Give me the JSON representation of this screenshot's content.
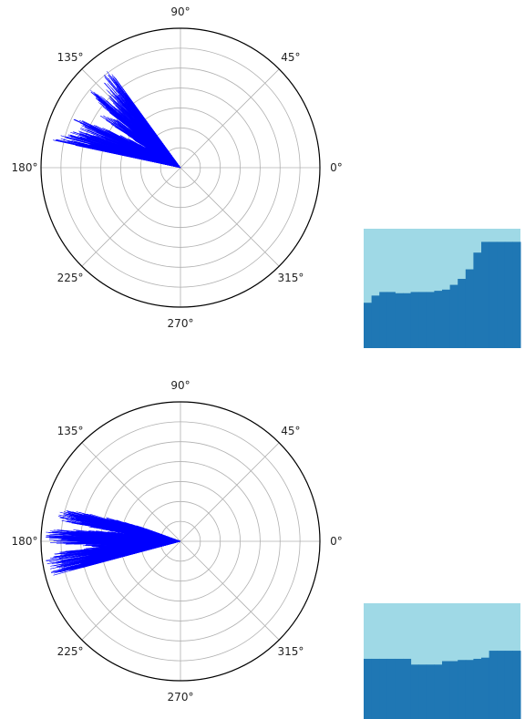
{
  "chart_data": [
    {
      "type": "polar",
      "angle_unit": "degrees",
      "angle_tick_labels": [
        "0°",
        "45°",
        "90°",
        "135°",
        "180°",
        "225°",
        "270°",
        "315°"
      ],
      "radial_grid_rings": 7,
      "grid": true,
      "series": [
        {
          "color": "#0000ff",
          "style": "dense-spiky-fan",
          "points": [
            {
              "theta": 168,
              "r": 0.96
            },
            {
              "theta": 160,
              "r": 0.78
            },
            {
              "theta": 155,
              "r": 0.85
            },
            {
              "theta": 147,
              "r": 0.7
            },
            {
              "theta": 143,
              "r": 0.58
            },
            {
              "theta": 140,
              "r": 0.95
            },
            {
              "theta": 137,
              "r": 0.68
            },
            {
              "theta": 132,
              "r": 0.82
            },
            {
              "theta": 126,
              "r": 0.92
            },
            {
              "theta": 150,
              "r": 0.32
            },
            {
              "theta": 160,
              "r": 0.14
            },
            {
              "theta": 176,
              "r": 0.05
            }
          ]
        }
      ],
      "inset": {
        "colors": {
          "background": "#9fd9e6",
          "fill": "#1f77b4"
        },
        "profile": [
          0.62,
          0.56,
          0.53,
          0.53,
          0.54,
          0.54,
          0.53,
          0.53,
          0.53,
          0.52,
          0.51,
          0.47,
          0.42,
          0.34,
          0.2,
          0.11,
          0.11,
          0.11,
          0.11,
          0.11
        ]
      }
    },
    {
      "type": "polar",
      "angle_unit": "degrees",
      "angle_tick_labels": [
        "0°",
        "45°",
        "90°",
        "135°",
        "180°",
        "225°",
        "270°",
        "315°"
      ],
      "radial_grid_rings": 7,
      "grid": true,
      "series": [
        {
          "color": "#0000ff",
          "style": "dense-spiky-fan",
          "points": [
            {
              "theta": 195,
              "r": 0.95
            },
            {
              "theta": 188,
              "r": 0.98
            },
            {
              "theta": 185,
              "r": 0.9
            },
            {
              "theta": 180,
              "r": 0.99
            },
            {
              "theta": 175,
              "r": 0.96
            },
            {
              "theta": 170,
              "r": 0.92
            },
            {
              "theta": 165,
              "r": 0.88
            },
            {
              "theta": 160,
              "r": 0.3
            },
            {
              "theta": 172,
              "r": 0.45
            },
            {
              "theta": 184,
              "r": 0.6
            },
            {
              "theta": 178,
              "r": 0.02
            }
          ]
        }
      ],
      "inset": {
        "colors": {
          "background": "#9fd9e6",
          "fill": "#1f77b4"
        },
        "profile": [
          0.48,
          0.48,
          0.48,
          0.48,
          0.48,
          0.48,
          0.53,
          0.53,
          0.53,
          0.53,
          0.5,
          0.5,
          0.49,
          0.49,
          0.48,
          0.47,
          0.41,
          0.41,
          0.41,
          0.41
        ]
      }
    }
  ]
}
